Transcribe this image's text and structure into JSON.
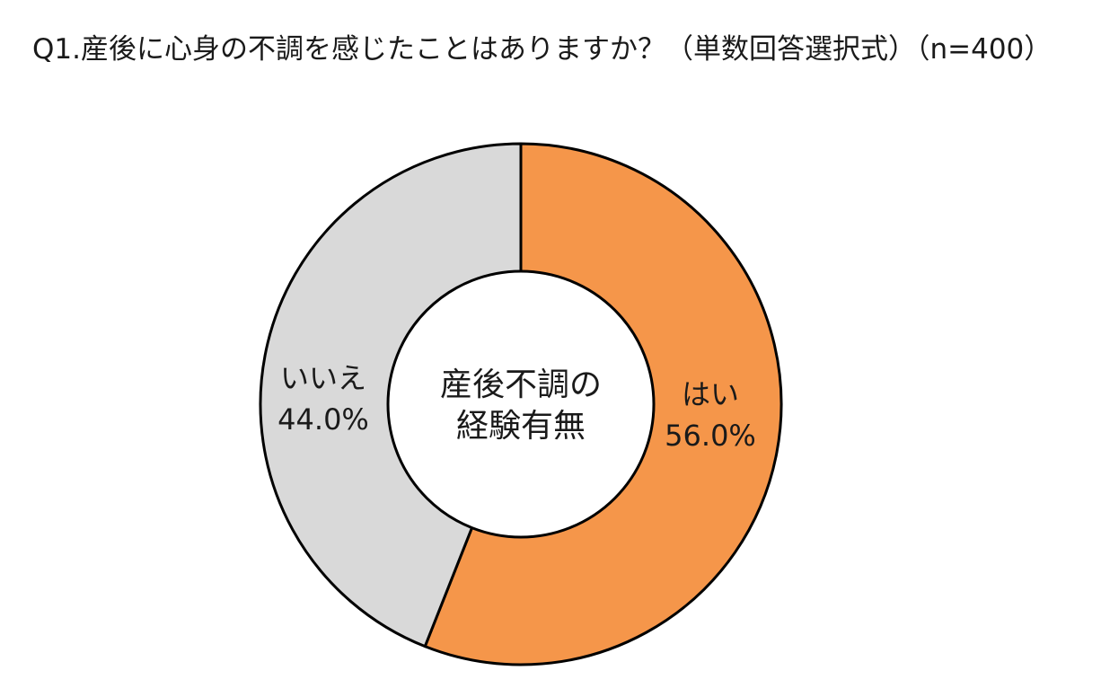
{
  "chart_data": {
    "type": "pie",
    "variant": "donut",
    "title": "Q1.産後に心身の不調を感じたことはありますか？（単数回答選択式）（n=400）",
    "center_label": [
      "産後不調の",
      "経験有無"
    ],
    "slices": [
      {
        "label": "はい",
        "value": 56.0,
        "display": "56.0%",
        "color": "#F5964A"
      },
      {
        "label": "いいえ",
        "value": 44.0,
        "display": "44.0%",
        "color": "#D9D9D9"
      }
    ],
    "start": "12 o'clock",
    "direction": "clockwise",
    "outline_color": "#000000",
    "center_fill": "#FFFFFF"
  }
}
